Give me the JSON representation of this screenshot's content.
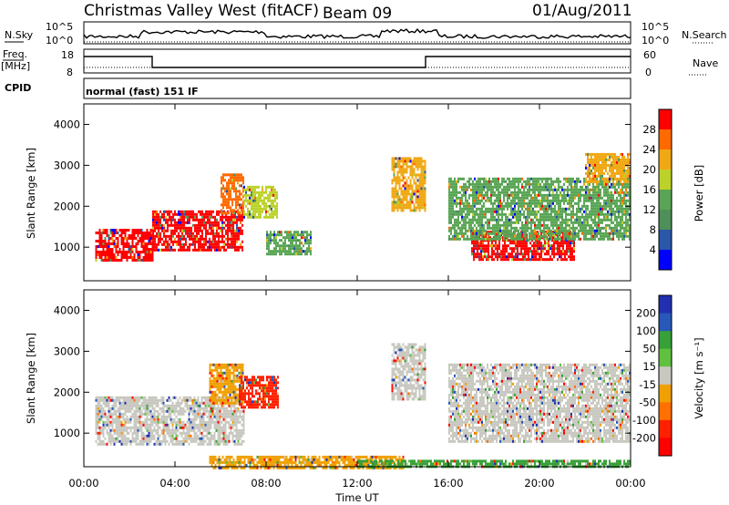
{
  "header": {
    "station": "Christmas Valley West (fitACF)",
    "beam": "Beam 09",
    "date": "01/Aug/2011"
  },
  "left_labels": {
    "nsky": "N.Sky",
    "freq": "Freq.",
    "freq_unit": "[MHz]",
    "cpid": "CPID"
  },
  "right_labels": {
    "nsearch": "N.Search",
    "nave": "Nave"
  },
  "cpid_text": "normal (fast) 151 IF",
  "noise_panel": {
    "left_top": "10^5",
    "left_bottom": "10^0",
    "right_top": "10^5",
    "right_bottom": "10^0"
  },
  "freq_panel": {
    "left_ticks": [
      "18",
      "8"
    ],
    "right_ticks": [
      "60",
      "0"
    ]
  },
  "colors": {
    "power_scale": [
      "#0000ff",
      "#2b57a8",
      "#4f8f5a",
      "#5aa555",
      "#bcd22a",
      "#f0a814",
      "#ff6a00",
      "#ff0000"
    ],
    "velocity_scale": [
      "#2030b0",
      "#2858b8",
      "#38a038",
      "#60c040",
      "#c8c8c0",
      "#f0a000",
      "#ff7000",
      "#ff2000",
      "#ff0000"
    ]
  },
  "chart_data": [
    {
      "type": "heatmap",
      "name": "power",
      "ylabel": "Slant Range [km]",
      "ylim": [
        180,
        4500
      ],
      "yticks": [
        "1000",
        "2000",
        "3000",
        "4000"
      ],
      "xlim": [
        0,
        24
      ],
      "xticks": [
        "00:00",
        "04:00",
        "08:00",
        "12:00",
        "16:00",
        "20:00",
        "00:00"
      ],
      "colorbar": {
        "label": "Power [dB]",
        "ticks": [
          "28",
          "24",
          "20",
          "16",
          "12",
          "8",
          "4"
        ]
      },
      "regions": [
        {
          "t0": 0.5,
          "t1": 3.0,
          "r0": 700,
          "r1": 1450,
          "level": "28"
        },
        {
          "t0": 3.0,
          "t1": 7.0,
          "r0": 900,
          "r1": 1900,
          "level": "28"
        },
        {
          "t0": 6.0,
          "t1": 7.0,
          "r0": 1800,
          "r1": 2800,
          "level": "24"
        },
        {
          "t0": 7.0,
          "t1": 8.5,
          "r0": 1700,
          "r1": 2500,
          "level": "16"
        },
        {
          "t0": 8.0,
          "t1": 10.0,
          "r0": 800,
          "r1": 1400,
          "level": "12"
        },
        {
          "t0": 13.5,
          "t1": 15.0,
          "r0": 1900,
          "r1": 3200,
          "level": "20"
        },
        {
          "t0": 17.0,
          "t1": 21.5,
          "r0": 700,
          "r1": 1400,
          "level": "28"
        },
        {
          "t0": 16.0,
          "t1": 24.0,
          "r0": 1200,
          "r1": 2700,
          "level": "12"
        },
        {
          "t0": 22.0,
          "t1": 24.0,
          "r0": 2600,
          "r1": 3300,
          "level": "20"
        }
      ]
    },
    {
      "type": "heatmap",
      "name": "velocity",
      "ylabel": "Slant Range [km]",
      "ylim": [
        180,
        4500
      ],
      "yticks": [
        "1000",
        "2000",
        "3000",
        "4000"
      ],
      "xlim": [
        0,
        24
      ],
      "xticks": [
        "00:00",
        "04:00",
        "08:00",
        "12:00",
        "16:00",
        "20:00",
        "00:00"
      ],
      "xlabel": "Time UT",
      "colorbar": {
        "label": "Velocity [m s⁻¹]",
        "ticks": [
          "200",
          "100",
          "50",
          "15",
          "-15",
          "-50",
          "-100",
          "-200"
        ]
      },
      "regions": [
        {
          "t0": 0.5,
          "t1": 7.0,
          "r0": 700,
          "r1": 1900,
          "level": "-15"
        },
        {
          "t0": 5.5,
          "t1": 7.0,
          "r0": 1700,
          "r1": 2700,
          "level": "-50"
        },
        {
          "t0": 6.8,
          "t1": 8.5,
          "r0": 1600,
          "r1": 2400,
          "level": "-200"
        },
        {
          "t0": 13.5,
          "t1": 15.0,
          "r0": 1800,
          "r1": 3200,
          "level": "-15"
        },
        {
          "t0": 16.0,
          "t1": 24.0,
          "r0": 800,
          "r1": 2700,
          "level": "-15"
        },
        {
          "t0": 5.5,
          "t1": 14.0,
          "r0": 180,
          "r1": 450,
          "level": "-50"
        },
        {
          "t0": 12.0,
          "t1": 24.0,
          "r0": 180,
          "r1": 350,
          "level": "50"
        }
      ]
    }
  ]
}
